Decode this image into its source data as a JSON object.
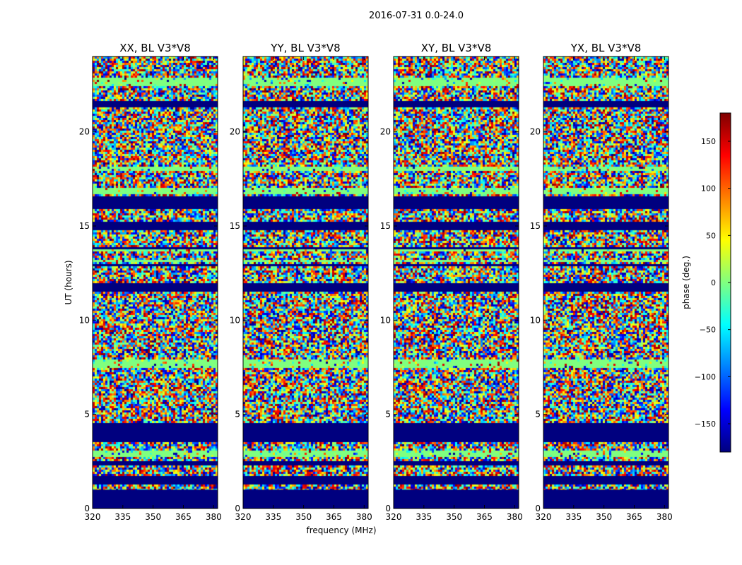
{
  "chart_data": {
    "type": "heatmap",
    "suptitle": "2016-07-31 0.0-24.0",
    "xlabel": "frequency (MHz)",
    "ylabel": "UT (hours)",
    "xlim": [
      320,
      382
    ],
    "ylim": [
      0,
      24
    ],
    "xticks": [
      320,
      335,
      350,
      365,
      380
    ],
    "yticks": [
      0,
      5,
      10,
      15,
      20
    ],
    "colorbar": {
      "label": "phase (deg.)",
      "range": [
        -180,
        180
      ],
      "ticks": [
        150,
        100,
        50,
        0,
        -50,
        -100,
        -150
      ],
      "colormap": "jet",
      "colors": [
        "#00007f",
        "#0000ff",
        "#0080ff",
        "#00ffff",
        "#80ff80",
        "#ffff00",
        "#ff8000",
        "#ff0000",
        "#7f0000"
      ]
    },
    "panels": [
      {
        "title": "XX, BL V3*V8",
        "flagged_color": "#7fff7f"
      },
      {
        "title": "YY, BL V3*V8",
        "flagged_color": "#7fff7f"
      },
      {
        "title": "XY, BL V3*V8",
        "flagged_color": "#7fff7f"
      },
      {
        "title": "YX, BL V3*V8",
        "flagged_color": "#7fff7f"
      }
    ],
    "no_data_until_hours": 1.0
  }
}
